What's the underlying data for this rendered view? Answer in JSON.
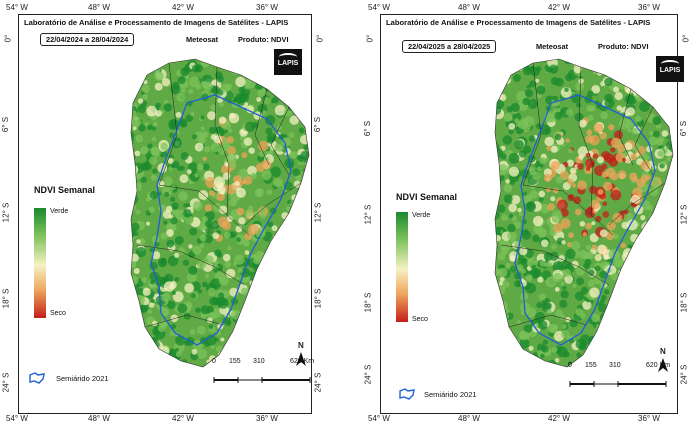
{
  "lab_title": "Laboratório de Análise e Processamento de Imagens de Satélites - LAPIS",
  "satellite_label": "Meteosat",
  "product_label": "Produto: NDVI",
  "logo_text": "LAPIS",
  "legend": {
    "title": "NDVI Semanal",
    "high_label": "Verde",
    "low_label": "Seco",
    "colors": [
      "#1a8a2e",
      "#7cc25b",
      "#f6f1c3",
      "#eea45a",
      "#c41e1a"
    ]
  },
  "semiarid_label": "Semiárido 2021",
  "semiarid_color": "#1f5fd6",
  "north_label": "N",
  "scale_ticks": [
    "0",
    "155",
    "310",
    "620 Km"
  ],
  "axis": {
    "top": [
      "54° W",
      "48° W",
      "42° W",
      "36° W"
    ],
    "bottom": [
      "54° W",
      "48° W",
      "42° W",
      "36° W"
    ],
    "left": [
      "0°",
      "6° S",
      "12° S",
      "18° S",
      "24° S"
    ],
    "right": [
      "0°",
      "6° S",
      "12° S",
      "18° S",
      "24° S"
    ]
  },
  "panels": [
    {
      "date_range": "22/04/2024  a  28/04/2024",
      "dry_intensity": 0.35
    },
    {
      "date_range": "22/04/2025  a  28/04/2025",
      "dry_intensity": 0.85
    }
  ]
}
